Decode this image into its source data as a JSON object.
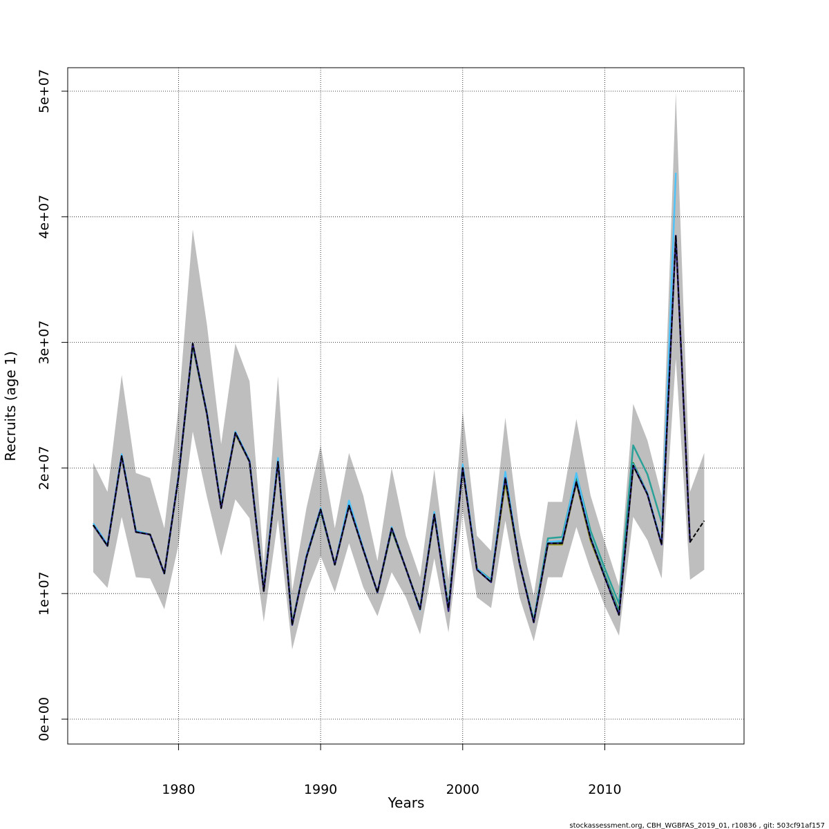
{
  "chart_data": {
    "type": "line",
    "x_label": "Years",
    "y_label": "Recruits (age 1)",
    "footer": "stockassessment.org, CBH_WGBFAS_2019_01, r10836 , git: 503cf91af157",
    "x": [
      1974,
      1975,
      1976,
      1977,
      1978,
      1979,
      1980,
      1981,
      1982,
      1983,
      1984,
      1985,
      1986,
      1987,
      1988,
      1989,
      1990,
      1991,
      1992,
      1993,
      1994,
      1995,
      1996,
      1997,
      1998,
      1999,
      2000,
      2001,
      2002,
      2003,
      2004,
      2005,
      2006,
      2007,
      2008,
      2009,
      2010,
      2011,
      2012,
      2013,
      2014,
      2015,
      2016,
      2017
    ],
    "xlim": [
      1972.2,
      2019.8
    ],
    "xticks": [
      1980,
      1990,
      2000,
      2010
    ],
    "ylim": [
      -1980000,
      51870000
    ],
    "yticks": [
      {
        "value": 0,
        "label": "0e+00"
      },
      {
        "value": 10000000,
        "label": "1e+07"
      },
      {
        "value": 20000000,
        "label": "2e+07"
      },
      {
        "value": 30000000,
        "label": "3e+07"
      },
      {
        "value": 40000000,
        "label": "4e+07"
      },
      {
        "value": 50000000,
        "label": "5e+07"
      }
    ],
    "grid": true,
    "band": {
      "color": "#bebebe",
      "upper": [
        20400000.0,
        18100000.0,
        27400000.0,
        19600000.0,
        19200000.0,
        15200000.0,
        24800000.0,
        39000000.0,
        31400000.0,
        21900000.0,
        29900000.0,
        26900000.0,
        12300000.0,
        27300000.0,
        10200000.0,
        16800000.0,
        21800000.0,
        15200000.0,
        21200000.0,
        17800000.0,
        12600000.0,
        20000000.0,
        14600000.0,
        11300000.0,
        19900000.0,
        11100000.0,
        24500000.0,
        14600000.0,
        13400000.0,
        24000000.0,
        14900000.0,
        9850000.0,
        17300000.0,
        17300000.0,
        23900000.0,
        17800000.0,
        14100000.0,
        10600000.0,
        25100000.0,
        22200000.0,
        17800000.0,
        49900000.0,
        18100000.0,
        21200000.0
      ],
      "lower": [
        11700000.0,
        10450000.0,
        16100000.0,
        11300000.0,
        11200000.0,
        8750000.0,
        13900000.0,
        22900000.0,
        17700000.0,
        13000000.0,
        17500000.0,
        16000000.0,
        7750000.0,
        15900000.0,
        5550000.0,
        10100000.0,
        13000000.0,
        10100000.0,
        14000000.0,
        10500000.0,
        8200000.0,
        11700000.0,
        9700000.0,
        6750000.0,
        12800000.0,
        6900000.0,
        16600000.0,
        9700000.0,
        8850000.0,
        15800000.0,
        9700000.0,
        6200000.0,
        11300000.0,
        11300000.0,
        15300000.0,
        11900000.0,
        9000000.0,
        6650000.0,
        16100000.0,
        14250000.0,
        11200000.0,
        28700000.0,
        11100000.0,
        11900000.0
      ]
    },
    "series": [
      {
        "color": "#9a9a1a",
        "values": [
          15450000.0,
          13800000.0,
          20950000.0,
          15000000.0,
          14700000.0,
          11600000.0,
          19300000.0,
          29700000.0,
          24300000.0,
          16900000.0,
          22700000.0,
          20500000.0,
          10300000.0,
          20400000.0,
          7600000.0,
          12900000.0,
          16600000.0,
          12300000.0,
          17000000.0,
          13500000.0,
          10100000.0,
          15100000.0,
          12000000.0,
          8800000.0,
          16200000.0,
          8900000.0,
          19900000.0,
          12000000.0,
          11000000.0,
          18800000.0,
          12400000.0,
          7800000.0,
          13900000.0,
          13900000.0,
          18800000.0,
          14200000.0,
          11300000.0,
          8600000.0,
          20000000.0,
          null,
          null,
          null,
          null,
          null
        ]
      },
      {
        "color": "#1b8a3a",
        "values": [
          15450000.0,
          13800000.0,
          20950000.0,
          15000000.0,
          14700000.0,
          11600000.0,
          19300000.0,
          29800000.0,
          24300000.0,
          16900000.0,
          22800000.0,
          20500000.0,
          10300000.0,
          20500000.0,
          7600000.0,
          12900000.0,
          16600000.0,
          12300000.0,
          17000000.0,
          13500000.0,
          10100000.0,
          15100000.0,
          12000000.0,
          8800000.0,
          16300000.0,
          8900000.0,
          20000000.0,
          12000000.0,
          11000000.0,
          19200000.0,
          12400000.0,
          7800000.0,
          14000000.0,
          14100000.0,
          19200000.0,
          14500000.0,
          11500000.0,
          8600000.0,
          20400000.0,
          18000000.0,
          null,
          null,
          null,
          null
        ]
      },
      {
        "color": "#2aa198",
        "values": [
          15450000.0,
          13800000.0,
          20950000.0,
          15000000.0,
          14700000.0,
          11600000.0,
          19300000.0,
          29800000.0,
          24300000.0,
          16900000.0,
          22800000.0,
          20500000.0,
          10300000.0,
          20500000.0,
          7600000.0,
          12900000.0,
          16600000.0,
          12300000.0,
          17100000.0,
          13500000.0,
          10100000.0,
          15200000.0,
          12000000.0,
          8800000.0,
          16300000.0,
          8900000.0,
          20100000.0,
          12000000.0,
          11100000.0,
          19400000.0,
          12400000.0,
          7900000.0,
          14400000.0,
          14500000.0,
          19500000.0,
          15000000.0,
          12000000.0,
          9200000.0,
          21800000.0,
          19500000.0,
          15700000.0,
          null,
          null,
          null
        ]
      },
      {
        "color": "#4fc3f7",
        "values": [
          15600000.0,
          13900000.0,
          21100000.0,
          15000000.0,
          14700000.0,
          11600000.0,
          19400000.0,
          29900000.0,
          24400000.0,
          16900000.0,
          22900000.0,
          20600000.0,
          10300000.0,
          20800000.0,
          7500000.0,
          13000000.0,
          16800000.0,
          12300000.0,
          17400000.0,
          13600000.0,
          10100000.0,
          15300000.0,
          12000000.0,
          8700000.0,
          16500000.0,
          8800000.0,
          20300000.0,
          12000000.0,
          11000000.0,
          19700000.0,
          12400000.0,
          7800000.0,
          14100000.0,
          14200000.0,
          19600000.0,
          14500000.0,
          11400000.0,
          8400000.0,
          20300000.0,
          18000000.0,
          14000000.0,
          43500000.0,
          null,
          null
        ]
      },
      {
        "color": "#2c1f7a",
        "values": [
          15450000.0,
          13800000.0,
          20950000.0,
          14900000.0,
          14700000.0,
          11600000.0,
          19300000.0,
          29900000.0,
          24300000.0,
          16800000.0,
          22800000.0,
          20500000.0,
          10200000.0,
          20500000.0,
          7500000.0,
          12900000.0,
          16700000.0,
          12300000.0,
          17000000.0,
          13500000.0,
          10100000.0,
          15200000.0,
          12000000.0,
          8750000.0,
          16300000.0,
          8600000.0,
          20000000.0,
          11900000.0,
          10900000.0,
          19200000.0,
          12400000.0,
          7700000.0,
          14000000.0,
          14000000.0,
          18900000.0,
          14400000.0,
          11300000.0,
          8300000.0,
          20200000.0,
          17900000.0,
          13900000.0,
          38500000.0,
          14100000.0,
          null
        ]
      },
      {
        "color": "#000000",
        "dashed": true,
        "values": [
          15450000.0,
          13800000.0,
          20950000.0,
          14900000.0,
          14700000.0,
          11600000.0,
          19300000.0,
          29900000.0,
          24300000.0,
          16800000.0,
          22800000.0,
          20500000.0,
          10200000.0,
          20500000.0,
          7500000.0,
          12900000.0,
          16700000.0,
          12300000.0,
          17000000.0,
          13500000.0,
          10100000.0,
          15200000.0,
          12000000.0,
          8750000.0,
          16300000.0,
          8850000.0,
          20000000.0,
          11900000.0,
          10900000.0,
          19200000.0,
          12400000.0,
          7750000.0,
          14000000.0,
          14000000.0,
          18900000.0,
          14400000.0,
          11300000.0,
          8300000.0,
          20200000.0,
          17900000.0,
          13900000.0,
          38500000.0,
          14100000.0,
          15800000.0
        ]
      }
    ]
  }
}
